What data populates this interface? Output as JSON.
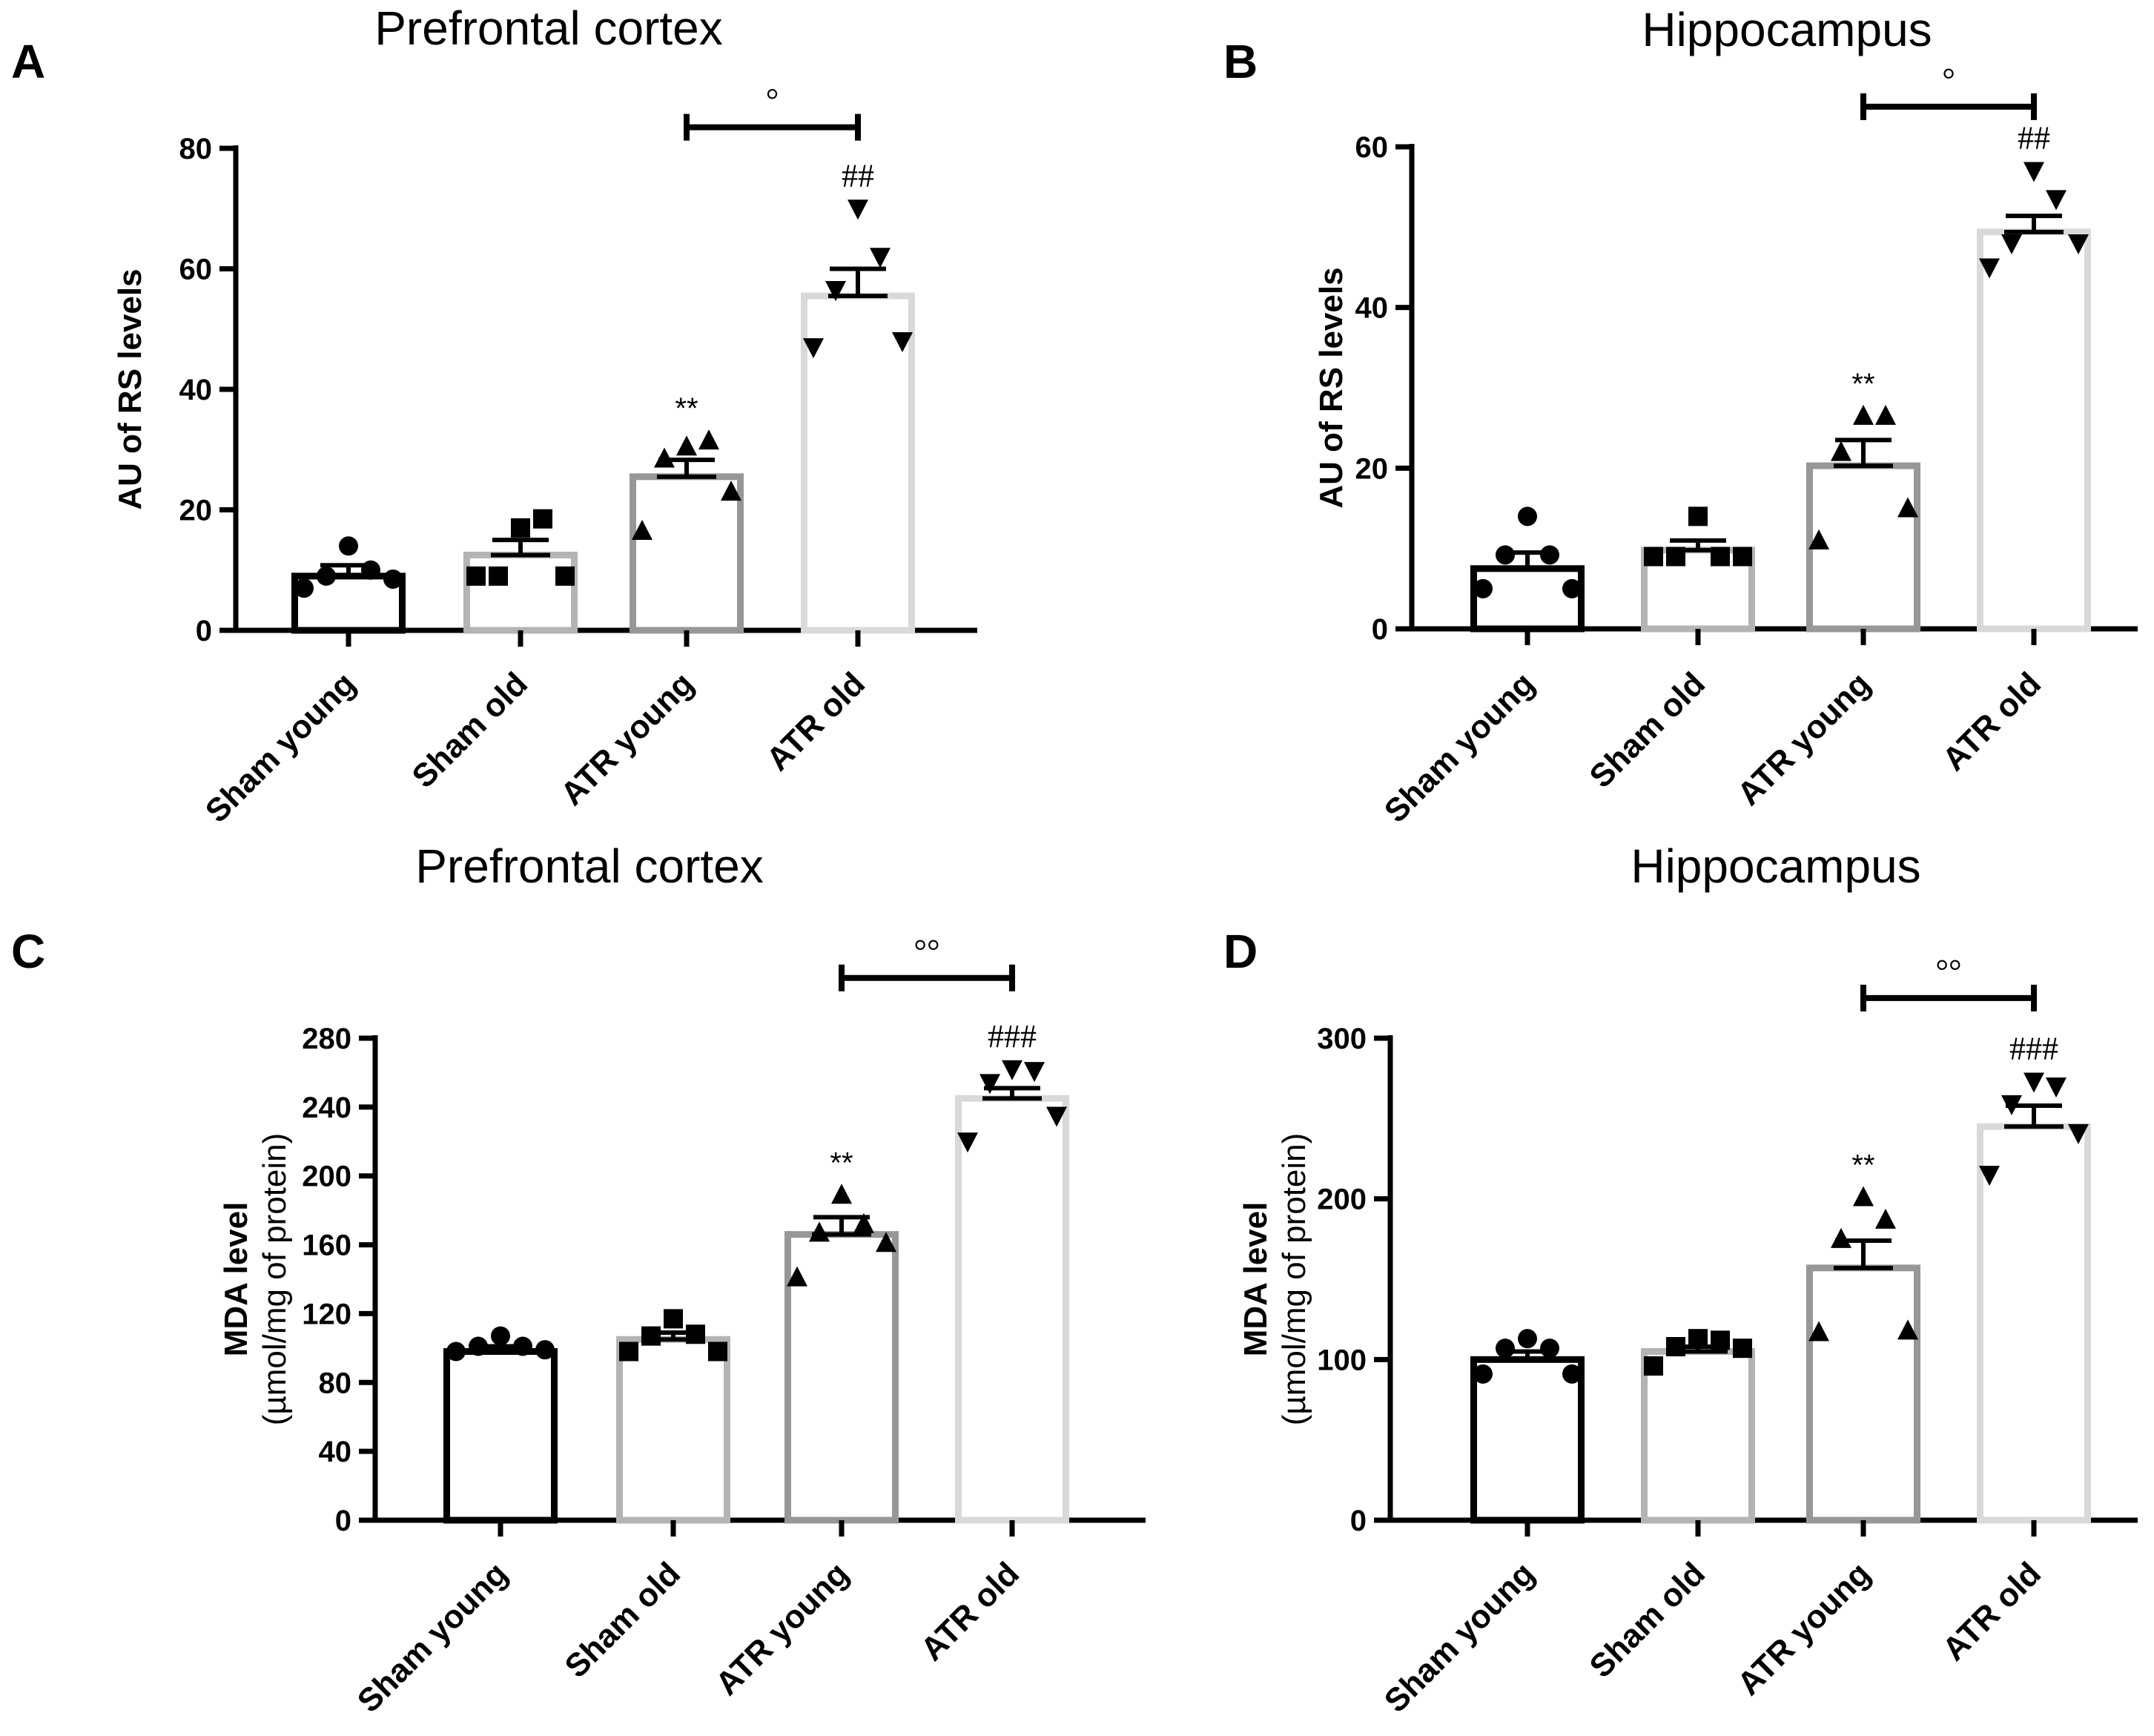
{
  "chart_data": [
    {
      "type": "bar",
      "panel": "A",
      "title": "Prefrontal cortex",
      "ylabel": "AU of RS levels",
      "ylabel_lines": [
        "AU of RS levels"
      ],
      "ylim": [
        0,
        80
      ],
      "yticks": [
        0,
        20,
        40,
        60,
        80
      ],
      "categories": [
        "Sham young",
        "Sham old",
        "ATR young",
        "ATR old"
      ],
      "colors": [
        "#000000",
        "#b4b4b4",
        "#979797",
        "#d9d9d9"
      ],
      "markers": [
        "circle",
        "square",
        "triangle-up",
        "triangle-down"
      ],
      "means": [
        9,
        12.5,
        25.5,
        55.5
      ],
      "sem": [
        1.8,
        2.5,
        2.8,
        4.5
      ],
      "points": [
        [
          14,
          10,
          9,
          8.5,
          7
        ],
        [
          17,
          18.5,
          9,
          9,
          9
        ],
        [
          30.5,
          31.5,
          28.5,
          23,
          16.5
        ],
        [
          70,
          62,
          56.5,
          48,
          47
        ]
      ],
      "stars": [
        "",
        "",
        "**",
        "##"
      ],
      "bracket": {
        "from": 2,
        "to": 3,
        "label": "°",
        "y": 83.5
      }
    },
    {
      "type": "bar",
      "panel": "B",
      "title": "Hippocampus",
      "ylabel": "AU of RS levels",
      "ylabel_lines": [
        "AU of RS levels"
      ],
      "ylim": [
        0,
        60
      ],
      "yticks": [
        0,
        20,
        40,
        60
      ],
      "categories": [
        "Sham young",
        "Sham old",
        "ATR young",
        "ATR old"
      ],
      "colors": [
        "#000000",
        "#b4b4b4",
        "#979797",
        "#d9d9d9"
      ],
      "markers": [
        "circle",
        "square",
        "triangle-up",
        "triangle-down"
      ],
      "means": [
        7.5,
        9.8,
        20.3,
        49.4
      ],
      "sem": [
        2,
        1.2,
        3.2,
        2
      ],
      "points": [
        [
          14,
          9.2,
          9.2,
          5,
          5
        ],
        [
          14,
          9,
          9,
          9,
          9
        ],
        [
          26.5,
          26.5,
          22,
          15,
          11
        ],
        [
          57,
          53.5,
          48,
          48,
          45
        ]
      ],
      "stars": [
        "",
        "",
        "**",
        "##"
      ],
      "bracket": {
        "from": 2,
        "to": 3,
        "label": "°",
        "y": 65
      }
    },
    {
      "type": "bar",
      "panel": "C",
      "title": "Prefrontal cortex",
      "ylabel": "MDA level (µmol/mg of protein)",
      "ylabel_lines": [
        "MDA level",
        "(µmol/mg of protein)"
      ],
      "ylim": [
        0,
        280
      ],
      "yticks": [
        0,
        40,
        80,
        120,
        160,
        200,
        240,
        280
      ],
      "categories": [
        "Sham young",
        "Sham old",
        "ATR young",
        "ATR old"
      ],
      "colors": [
        "#000000",
        "#b4b4b4",
        "#979797",
        "#d9d9d9"
      ],
      "markers": [
        "circle",
        "square",
        "triangle-up",
        "triangle-down"
      ],
      "means": [
        98,
        105,
        166,
        245
      ],
      "sem": [
        3,
        4,
        10,
        6
      ],
      "points": [
        [
          107,
          101,
          101,
          99,
          98
        ],
        [
          117,
          108,
          107,
          98,
          98
        ],
        [
          189,
          172,
          167,
          161,
          141
        ],
        [
          262,
          261,
          254,
          235,
          220
        ]
      ],
      "stars": [
        "",
        "",
        "**",
        "###"
      ],
      "bracket": {
        "from": 2,
        "to": 3,
        "label": "°°",
        "y": 315
      }
    },
    {
      "type": "bar",
      "panel": "D",
      "title": "Hippocampus",
      "ylabel": "MDA level (µmol/mg of protein)",
      "ylabel_lines": [
        "MDA level",
        "(µmol/mg of protein)"
      ],
      "ylim": [
        0,
        300
      ],
      "yticks": [
        0,
        100,
        200,
        300
      ],
      "categories": [
        "Sham young",
        "Sham old",
        "ATR young",
        "ATR old"
      ],
      "colors": [
        "#000000",
        "#b4b4b4",
        "#979797",
        "#d9d9d9"
      ],
      "markers": [
        "circle",
        "square",
        "triangle-up",
        "triangle-down"
      ],
      "means": [
        100,
        105,
        157,
        245
      ],
      "sem": [
        5,
        3,
        17,
        13
      ],
      "points": [
        [
          113,
          107,
          107,
          91,
          91
        ],
        [
          113,
          112,
          108,
          107,
          96
        ],
        [
          201,
          187,
          175,
          118,
          117
        ],
        [
          273,
          270,
          259,
          241,
          215
        ]
      ],
      "stars": [
        "",
        "",
        "**",
        "###"
      ],
      "bracket": {
        "from": 2,
        "to": 3,
        "label": "°°",
        "y": 325
      }
    }
  ]
}
